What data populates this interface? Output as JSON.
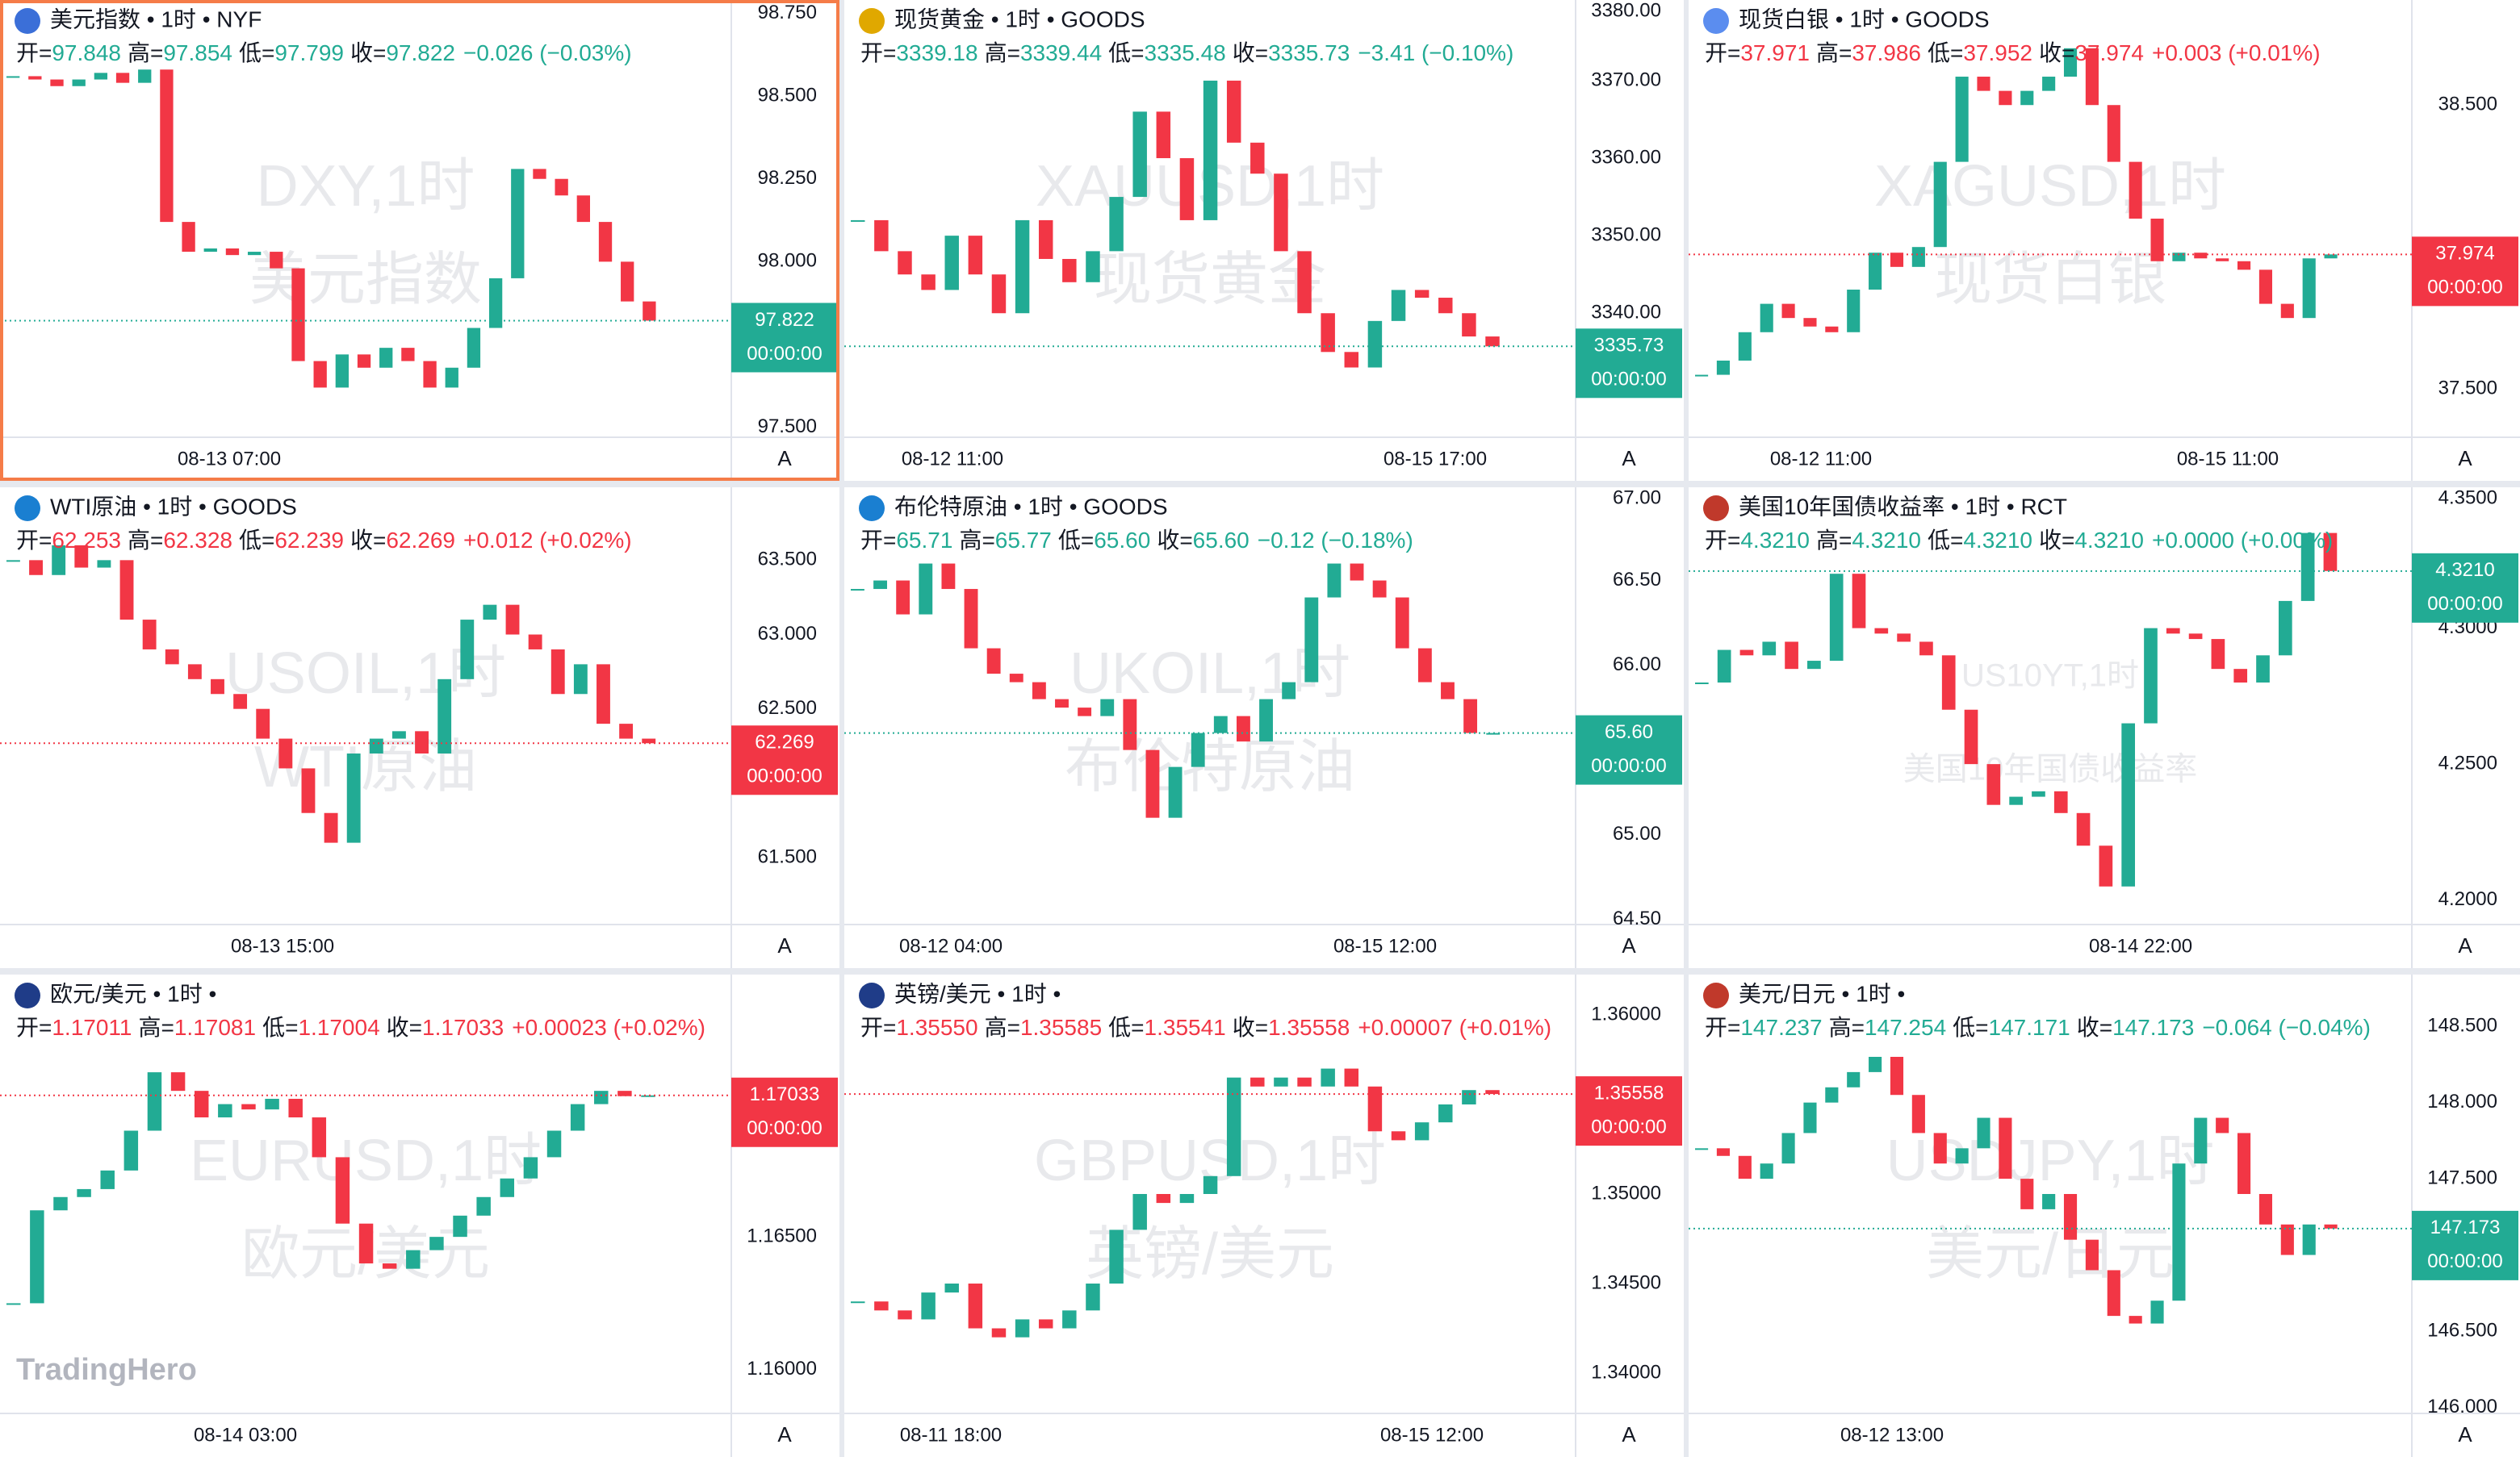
{
  "auto_label": "A",
  "ohlc_labels": [
    "开=",
    "高=",
    "低=",
    "收="
  ],
  "logo": "TradingHero",
  "panels": [
    {
      "title": "美元指数 • 1时 • NYF",
      "open": "97.848",
      "high": "97.854",
      "low": "97.799",
      "close": "97.822",
      "change": "−0.026 (−0.03%)",
      "color": "#22ab94",
      "watermark": [
        "DXY,1时",
        "美元指数"
      ],
      "ylim": [
        97.47,
        98.79
      ],
      "yticks": [
        {
          "value": 98.75,
          "label": "98.750"
        },
        {
          "value": 98.5,
          "label": "98.500"
        },
        {
          "value": 98.25,
          "label": "98.250"
        },
        {
          "value": 98,
          "label": "98.000"
        },
        {
          "value": 97.5,
          "label": "97.500"
        }
      ],
      "last": 97.822,
      "countdown": "00:00:00",
      "times": [
        "08-13 07:00"
      ],
      "closes": [
        98.56,
        98.55,
        98.53,
        98.55,
        98.57,
        98.54,
        98.58,
        98.12,
        98.03,
        98.04,
        98.02,
        98.03,
        97.98,
        97.7,
        97.62,
        97.72,
        97.68,
        97.74,
        97.7,
        97.62,
        97.68,
        97.8,
        97.95,
        98.28,
        98.25,
        98.2,
        98.12,
        98.0,
        97.88,
        97.822
      ]
    },
    {
      "title": "现货黄金 • 1时 • GOODS",
      "open": "3339.18",
      "high": "3339.44",
      "low": "3335.48",
      "close": "3335.73",
      "change": "−3.41 (−0.10%)",
      "color": "#22ab94",
      "watermark": [
        "XAUUSD,1时",
        "现货黄金"
      ],
      "ylim": [
        3324,
        3380.4
      ],
      "yticks": [
        {
          "value": 3380,
          "label": "3380.00"
        },
        {
          "value": 3370,
          "label": "3370.00"
        },
        {
          "value": 3360,
          "label": "3360.00"
        },
        {
          "value": 3350,
          "label": "3350.00"
        },
        {
          "value": 3340,
          "label": "3340.00"
        }
      ],
      "last": 3335.73,
      "countdown": "00:00:00",
      "times": [
        "08-12 11:00",
        "08-15 17:00"
      ],
      "closes": [
        3352,
        3348,
        3345,
        3343,
        3350,
        3345,
        3340,
        3352,
        3347,
        3344,
        3348,
        3355,
        3366,
        3360,
        3352,
        3370,
        3362,
        3358,
        3348,
        3340,
        3335,
        3333,
        3339,
        3343,
        3342,
        3340,
        3337,
        3335.73
      ]
    },
    {
      "title": "现货白银 • 1时 • GOODS",
      "open": "37.971",
      "high": "37.986",
      "low": "37.952",
      "close": "37.974",
      "change": "+0.003 (+0.01%)",
      "color": "#f23645",
      "watermark": [
        "XAGUSD,1时",
        "现货白银"
      ],
      "ylim": [
        37.33,
        38.87
      ],
      "yticks": [
        {
          "value": 38.5,
          "label": "38.500"
        },
        {
          "value": 37.5,
          "label": "37.500"
        }
      ],
      "last": 37.974,
      "countdown": "00:00:00",
      "times": [
        "08-12 11:00",
        "08-15 11:00"
      ],
      "closes": [
        37.55,
        37.6,
        37.7,
        37.8,
        37.75,
        37.72,
        37.7,
        37.85,
        37.98,
        37.93,
        38.0,
        38.3,
        38.6,
        38.55,
        38.5,
        38.55,
        38.6,
        38.7,
        38.5,
        38.3,
        38.1,
        37.95,
        37.98,
        37.96,
        37.95,
        37.92,
        37.8,
        37.75,
        37.96,
        37.974
      ]
    },
    {
      "title": "WTI原油 • 1时 • GOODS",
      "open": "62.253",
      "high": "62.328",
      "low": "62.239",
      "close": "62.269",
      "change": "+0.012 (+0.02%)",
      "color": "#f23645",
      "watermark": [
        "USOIL,1时",
        "WTI原油"
      ],
      "ylim": [
        61.05,
        63.99
      ],
      "yticks": [
        {
          "value": 63.5,
          "label": "63.500"
        },
        {
          "value": 63,
          "label": "63.000"
        },
        {
          "value": 62.5,
          "label": "62.500"
        },
        {
          "value": 61.5,
          "label": "61.500"
        }
      ],
      "last": 62.269,
      "countdown": "00:00:00",
      "times": [
        "08-13 15:00"
      ],
      "closes": [
        63.5,
        63.4,
        63.6,
        63.45,
        63.5,
        63.1,
        62.9,
        62.8,
        62.7,
        62.6,
        62.5,
        62.3,
        62.1,
        61.8,
        61.6,
        62.2,
        62.3,
        62.35,
        62.2,
        62.7,
        63.1,
        63.2,
        63.0,
        62.9,
        62.6,
        62.8,
        62.4,
        62.3,
        62.269
      ]
    },
    {
      "title": "布伦特原油 • 1时 • GOODS",
      "open": "65.71",
      "high": "65.77",
      "low": "65.60",
      "close": "65.60",
      "change": "−0.12 (−0.18%)",
      "color": "#22ab94",
      "watermark": [
        "UKOIL,1时",
        "布伦特原油"
      ],
      "ylim": [
        64.47,
        67.05
      ],
      "yticks": [
        {
          "value": 67,
          "label": "67.00"
        },
        {
          "value": 66.5,
          "label": "66.50"
        },
        {
          "value": 66,
          "label": "66.00"
        },
        {
          "value": 65,
          "label": "65.00"
        },
        {
          "value": 64.5,
          "label": "64.50"
        }
      ],
      "last": {
        "value": 65.6,
        "label": "65.60"
      },
      "countdown": "00:00:00",
      "times": [
        "08-12 04:00",
        "08-15 12:00"
      ],
      "closes": [
        66.45,
        66.5,
        66.3,
        66.6,
        66.45,
        66.1,
        65.95,
        65.9,
        65.8,
        65.75,
        65.7,
        65.8,
        65.5,
        65.1,
        65.4,
        65.6,
        65.7,
        65.55,
        65.8,
        65.9,
        66.4,
        66.6,
        66.5,
        66.4,
        66.1,
        65.9,
        65.8,
        65.6,
        65.6
      ]
    },
    {
      "title": "美国10年国债收益率 • 1时 • RCT",
      "open": "4.3210",
      "high": "4.3210",
      "low": "4.3210",
      "close": "4.3210",
      "change": "+0.0000 (+0.00%)",
      "color": "#22ab94",
      "watermark": [
        "US10YT,1时",
        "美国10年国债收益率"
      ],
      "ylim": [
        4.191,
        4.3518
      ],
      "yticks": [
        {
          "value": 4.35,
          "label": "4.3500"
        },
        {
          "value": 4.3,
          "label": "4.3000"
        },
        {
          "value": 4.25,
          "label": "4.2500"
        },
        {
          "value": 4.2,
          "label": "4.2000"
        }
      ],
      "last": {
        "value": 4.321,
        "label": "4.3210"
      },
      "countdown": "00:00:00",
      "times": [
        "08-14 22:00"
      ],
      "closes": [
        4.28,
        4.292,
        4.29,
        4.295,
        4.285,
        4.288,
        4.32,
        4.3,
        4.298,
        4.295,
        4.29,
        4.27,
        4.25,
        4.235,
        4.238,
        4.24,
        4.232,
        4.22,
        4.205,
        4.265,
        4.3,
        4.298,
        4.296,
        4.285,
        4.28,
        4.29,
        4.31,
        4.335,
        4.321
      ]
    },
    {
      "title": "欧元/美元 • 1时 •",
      "open": "1.17011",
      "high": "1.17081",
      "low": "1.17004",
      "close": "1.17033",
      "change": "+0.00023 (+0.02%)",
      "color": "#f23645",
      "watermark": [
        "EURUSD,1时",
        "欧元/美元"
      ],
      "ylim": [
        1.15835,
        1.17488
      ],
      "yticks": [
        {
          "value": 1.165,
          "label": "1.16500"
        },
        {
          "value": 1.16,
          "label": "1.16000"
        }
      ],
      "last": 1.17033,
      "countdown": "00:00:00",
      "times": [
        "08-14 03:00"
      ],
      "closes": [
        1.1625,
        1.166,
        1.1665,
        1.1668,
        1.1675,
        1.169,
        1.1712,
        1.1705,
        1.1695,
        1.17,
        1.1698,
        1.1702,
        1.1695,
        1.168,
        1.1655,
        1.164,
        1.1638,
        1.1645,
        1.165,
        1.1658,
        1.1665,
        1.1672,
        1.168,
        1.169,
        1.17,
        1.1705,
        1.1703,
        1.17033
      ]
    },
    {
      "title": "英镑/美元 • 1时 •",
      "open": "1.35550",
      "high": "1.35585",
      "low": "1.35541",
      "close": "1.35558",
      "change": "+0.00007 (+0.01%)",
      "color": "#f23645",
      "watermark": [
        "GBPUSD,1时",
        "英镑/美元"
      ],
      "ylim": [
        1.33775,
        1.36225
      ],
      "yticks": [
        {
          "value": 1.36,
          "label": "1.36000"
        },
        {
          "value": 1.35,
          "label": "1.35000"
        },
        {
          "value": 1.345,
          "label": "1.34500"
        },
        {
          "value": 1.34,
          "label": "1.34000"
        }
      ],
      "last": 1.35558,
      "countdown": "00:00:00",
      "times": [
        "08-11 18:00",
        "08-15 12:00"
      ],
      "closes": [
        1.344,
        1.3435,
        1.343,
        1.3445,
        1.345,
        1.3425,
        1.342,
        1.343,
        1.3425,
        1.3435,
        1.345,
        1.348,
        1.35,
        1.3495,
        1.35,
        1.351,
        1.3565,
        1.356,
        1.3565,
        1.356,
        1.357,
        1.356,
        1.3535,
        1.353,
        1.354,
        1.355,
        1.3558,
        1.35558
      ]
    },
    {
      "title": "美元/日元 • 1时 •",
      "open": "147.237",
      "high": "147.254",
      "low": "147.171",
      "close": "147.173",
      "change": "−0.064 (−0.04%)",
      "color": "#22ab94",
      "watermark": [
        "USDJPY,1时",
        "美元/日元"
      ],
      "ylim": [
        145.96,
        148.84
      ],
      "yticks": [
        {
          "value": 148.5,
          "label": "148.500"
        },
        {
          "value": 148,
          "label": "148.000"
        },
        {
          "value": 147.5,
          "label": "147.500"
        },
        {
          "value": 146.5,
          "label": "146.500"
        },
        {
          "value": 146,
          "label": "146.000"
        }
      ],
      "last": 147.173,
      "countdown": "00:00:00",
      "times": [
        "08-12 13:00"
      ],
      "closes": [
        147.7,
        147.65,
        147.5,
        147.6,
        147.8,
        148.0,
        148.1,
        148.2,
        148.3,
        148.05,
        147.8,
        147.6,
        147.7,
        147.9,
        147.5,
        147.3,
        147.4,
        147.1,
        146.9,
        146.6,
        146.55,
        146.7,
        147.6,
        147.9,
        147.8,
        147.4,
        147.2,
        147.0,
        147.2,
        147.173
      ]
    }
  ]
}
